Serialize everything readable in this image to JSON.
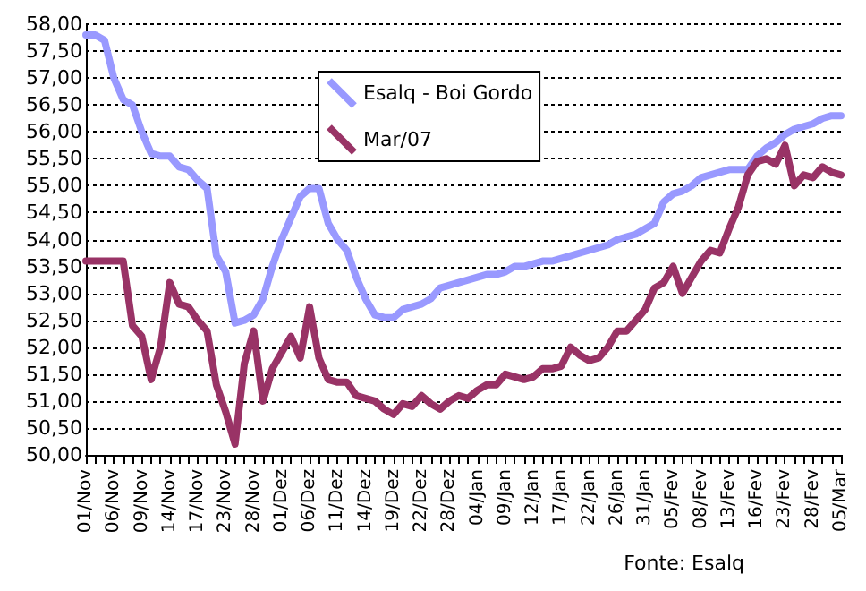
{
  "chart_data": {
    "type": "line",
    "categories": [
      "01/Nov",
      null,
      null,
      "06/Nov",
      null,
      null,
      "09/Nov",
      null,
      null,
      "14/Nov",
      null,
      null,
      "17/Nov",
      null,
      null,
      "23/Nov",
      null,
      null,
      "28/Nov",
      null,
      null,
      "01/Dez",
      null,
      null,
      "06/Dez",
      null,
      null,
      "11/Dez",
      null,
      null,
      "14/Dez",
      null,
      null,
      "19/Dez",
      null,
      null,
      "22/Dez",
      null,
      null,
      "28/Dez",
      null,
      null,
      "04/Jan",
      null,
      null,
      "09/Jan",
      null,
      null,
      "12/Jan",
      null,
      null,
      "17/Jan",
      null,
      null,
      "22/Jan",
      null,
      null,
      "26/Jan",
      null,
      null,
      "31/Jan",
      null,
      null,
      "05/Fev",
      null,
      null,
      "08/Fev",
      null,
      null,
      "13/Fev",
      null,
      null,
      "16/Fev",
      null,
      null,
      "23/Fev",
      null,
      null,
      "28/Fev",
      null,
      null,
      "05/Mar"
    ],
    "series": [
      {
        "name": "Esalq - Boi Gordo",
        "color": "#9999ff",
        "values": [
          57.8,
          57.8,
          57.7,
          57.0,
          56.6,
          56.5,
          56.0,
          55.6,
          55.55,
          55.55,
          55.35,
          55.3,
          55.1,
          54.95,
          53.7,
          53.4,
          52.45,
          52.5,
          52.6,
          52.9,
          53.5,
          54.0,
          54.4,
          54.8,
          54.95,
          54.95,
          54.3,
          54.0,
          53.8,
          53.3,
          52.9,
          52.6,
          52.55,
          52.55,
          52.7,
          52.75,
          52.8,
          52.9,
          53.1,
          53.15,
          53.2,
          53.25,
          53.3,
          53.35,
          53.35,
          53.4,
          53.5,
          53.5,
          53.55,
          53.6,
          53.6,
          53.65,
          53.7,
          53.75,
          53.8,
          53.85,
          53.9,
          54.0,
          54.05,
          54.1,
          54.2,
          54.3,
          54.7,
          54.85,
          54.9,
          55.0,
          55.15,
          55.2,
          55.25,
          55.3,
          55.3,
          55.3,
          55.55,
          55.7,
          55.8,
          55.95,
          56.05,
          56.1,
          56.15,
          56.25,
          56.3,
          56.3
        ]
      },
      {
        "name": "Mar/07",
        "color": "#993366",
        "values": [
          53.6,
          53.6,
          53.6,
          53.6,
          53.6,
          52.4,
          52.2,
          51.4,
          52.0,
          53.2,
          52.8,
          52.75,
          52.5,
          52.3,
          51.3,
          50.8,
          50.2,
          51.7,
          52.3,
          51.0,
          51.6,
          51.9,
          52.2,
          51.8,
          52.75,
          51.8,
          51.4,
          51.35,
          51.35,
          51.1,
          51.05,
          51.0,
          50.85,
          50.75,
          50.95,
          50.9,
          51.1,
          50.95,
          50.85,
          51.0,
          51.1,
          51.05,
          51.2,
          51.3,
          51.3,
          51.5,
          51.45,
          51.4,
          51.45,
          51.6,
          51.6,
          51.65,
          52.0,
          51.85,
          51.75,
          51.8,
          52.0,
          52.3,
          52.3,
          52.5,
          52.7,
          53.1,
          53.2,
          53.5,
          53.0,
          53.3,
          53.6,
          53.8,
          53.75,
          54.2,
          54.6,
          55.2,
          55.45,
          55.5,
          55.4,
          55.75,
          55.0,
          55.2,
          55.15,
          55.35,
          55.25,
          55.2
        ]
      }
    ],
    "ylim": [
      50,
      58
    ],
    "yticks": [
      {
        "value": 50,
        "label": "50,00"
      },
      {
        "value": 50.5,
        "label": "50,50"
      },
      {
        "value": 51,
        "label": "51,00"
      },
      {
        "value": 51.5,
        "label": "51,50"
      },
      {
        "value": 52,
        "label": "52,00"
      },
      {
        "value": 52.5,
        "label": "52,50"
      },
      {
        "value": 53,
        "label": "53,00"
      },
      {
        "value": 53.5,
        "label": "53,50"
      },
      {
        "value": 54,
        "label": "54,00"
      },
      {
        "value": 54.5,
        "label": "54,50"
      },
      {
        "value": 55,
        "label": "55,00"
      },
      {
        "value": 55.5,
        "label": "55,50"
      },
      {
        "value": 56,
        "label": "56,00"
      },
      {
        "value": 56.5,
        "label": "56,50"
      },
      {
        "value": 57,
        "label": "57,00"
      },
      {
        "value": 57.5,
        "label": "57,50"
      },
      {
        "value": 58,
        "label": "58,00"
      }
    ],
    "grid": "y",
    "legend": "top",
    "marker": "none",
    "line_style": "solid",
    "annotations": [
      "Fonte: Esalq"
    ]
  }
}
